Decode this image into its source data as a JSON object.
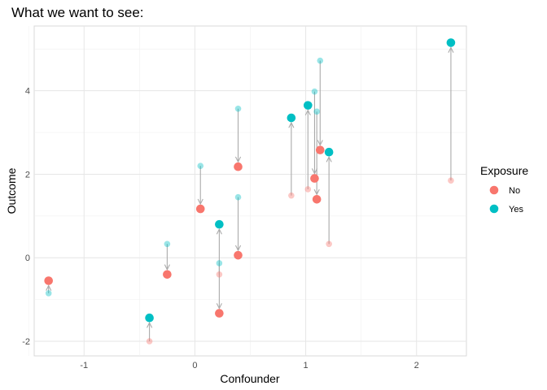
{
  "chart_data": {
    "type": "scatter",
    "title": "What we want to see:",
    "xlabel": "Confounder",
    "ylabel": "Outcome",
    "xlim": [
      -1.45,
      2.45
    ],
    "ylim": [
      -2.35,
      5.55
    ],
    "x_ticks": [
      -1,
      0,
      1,
      2
    ],
    "x_tick_labels": [
      "-1",
      "0",
      "1",
      "2"
    ],
    "y_ticks": [
      -2,
      0,
      2,
      4
    ],
    "y_tick_labels": [
      "-2",
      "0",
      "2",
      "4"
    ],
    "grid": true,
    "legend": {
      "title": "Exposure",
      "position": "right",
      "entries": [
        {
          "label": "No",
          "color": "#F8766D"
        },
        {
          "label": "Yes",
          "color": "#00BFC4"
        }
      ]
    },
    "arrow_color": "#aaaaaa",
    "faded_opacity": 0.4,
    "observations": [
      {
        "exposure": "No",
        "x": -1.32,
        "y_observed": -0.55,
        "y_counterfactual": -0.85
      },
      {
        "exposure": "No",
        "x": -0.25,
        "y_observed": -0.4,
        "y_counterfactual": 0.33
      },
      {
        "exposure": "No",
        "x": 0.05,
        "y_observed": 1.17,
        "y_counterfactual": 2.2
      },
      {
        "exposure": "No",
        "x": 0.22,
        "y_observed": -1.33,
        "y_counterfactual": -0.13
      },
      {
        "exposure": "No",
        "x": 0.39,
        "y_observed": 2.18,
        "y_counterfactual": 3.57
      },
      {
        "exposure": "No",
        "x": 0.39,
        "y_observed": 0.06,
        "y_counterfactual": 1.45
      },
      {
        "exposure": "No",
        "x": 1.08,
        "y_observed": 1.9,
        "y_counterfactual": 3.98
      },
      {
        "exposure": "No",
        "x": 1.1,
        "y_observed": 1.4,
        "y_counterfactual": 3.5
      },
      {
        "exposure": "No",
        "x": 1.13,
        "y_observed": 2.58,
        "y_counterfactual": 4.72
      },
      {
        "exposure": "Yes",
        "x": -0.41,
        "y_observed": -1.44,
        "y_counterfactual": -2.0
      },
      {
        "exposure": "Yes",
        "x": 0.22,
        "y_observed": 0.8,
        "y_counterfactual": -0.4
      },
      {
        "exposure": "Yes",
        "x": 0.87,
        "y_observed": 3.35,
        "y_counterfactual": 1.49
      },
      {
        "exposure": "Yes",
        "x": 1.02,
        "y_observed": 3.65,
        "y_counterfactual": 1.64
      },
      {
        "exposure": "Yes",
        "x": 1.21,
        "y_observed": 2.53,
        "y_counterfactual": 0.33
      },
      {
        "exposure": "Yes",
        "x": 2.31,
        "y_observed": 5.15,
        "y_counterfactual": 1.85
      }
    ]
  }
}
